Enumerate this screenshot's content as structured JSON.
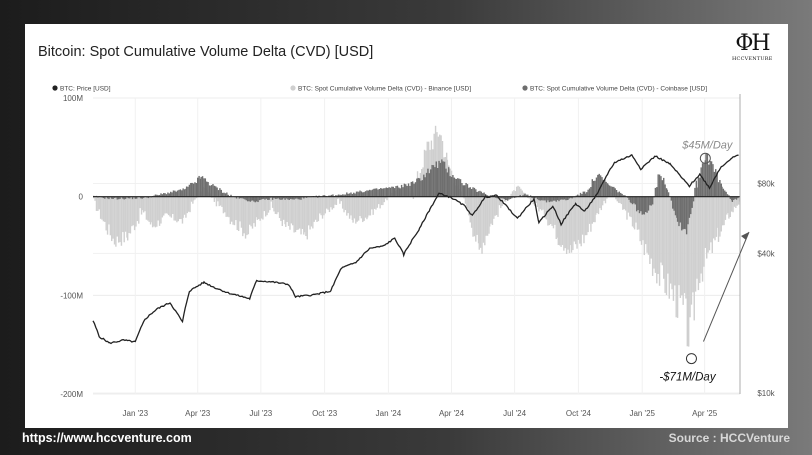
{
  "title": "Bitcoin: Spot Cumulative Volume Delta (CVD) [USD]",
  "logo": {
    "text": "HCCVENTURE"
  },
  "footer": {
    "url": "https://www.hccventure.com",
    "source": "Source : HCCVenture"
  },
  "colors": {
    "binance": "#cfcfcf",
    "coinbase": "#6e6e6e",
    "price": "#222222",
    "zero": "#222222"
  },
  "chart_data": {
    "type": "area",
    "title": "Bitcoin: Spot Cumulative Volume Delta (CVD) [USD]",
    "legend": [
      "BTC: Price [USD]",
      "BTC: Spot Cumulative Volume Delta (CVD) - Binance [USD]",
      "BTC: Spot Cumulative Volume Delta (CVD) - Coinbase [USD]"
    ],
    "legend_position": "top",
    "x_ticks": [
      "Jan '23",
      "Apr '23",
      "Jul '23",
      "Oct '23",
      "Jan '24",
      "Apr '24",
      "Jul '24",
      "Oct '24",
      "Jan '25",
      "Apr '25"
    ],
    "y_left": {
      "ticks": [
        "100M",
        "0",
        "-100M",
        "-200M"
      ],
      "tick_values": [
        100,
        0,
        -100,
        -200
      ],
      "ylim": [
        -200,
        100
      ],
      "unit": "USD (M)"
    },
    "y_right": {
      "ticks": [
        "$80k",
        "$40k",
        "$10k"
      ],
      "tick_values": [
        80000,
        40000,
        10000
      ],
      "scale": "log"
    },
    "x_range": [
      "2022-11",
      "2025-05"
    ],
    "grid": true,
    "series": [
      {
        "name": "BTC: Price [USD]",
        "axis": "right",
        "points": [
          [
            "2022-11-01",
            20500
          ],
          [
            "2022-11-10",
            17500
          ],
          [
            "2022-11-25",
            16400
          ],
          [
            "2022-12-15",
            16900
          ],
          [
            "2023-01-01",
            16600
          ],
          [
            "2023-01-15",
            20800
          ],
          [
            "2023-02-01",
            23000
          ],
          [
            "2023-02-20",
            24500
          ],
          [
            "2023-03-10",
            20200
          ],
          [
            "2023-03-20",
            27500
          ],
          [
            "2023-04-10",
            30000
          ],
          [
            "2023-04-25",
            28500
          ],
          [
            "2023-05-15",
            27000
          ],
          [
            "2023-06-15",
            25500
          ],
          [
            "2023-06-25",
            30500
          ],
          [
            "2023-07-15",
            30200
          ],
          [
            "2023-08-10",
            29400
          ],
          [
            "2023-08-20",
            26000
          ],
          [
            "2023-09-15",
            26500
          ],
          [
            "2023-10-10",
            27500
          ],
          [
            "2023-10-25",
            34500
          ],
          [
            "2023-11-15",
            36500
          ],
          [
            "2023-12-05",
            42000
          ],
          [
            "2023-12-25",
            43000
          ],
          [
            "2024-01-10",
            46500
          ],
          [
            "2024-01-23",
            39500
          ],
          [
            "2024-02-15",
            51000
          ],
          [
            "2024-03-01",
            62000
          ],
          [
            "2024-03-14",
            72500
          ],
          [
            "2024-04-01",
            69500
          ],
          [
            "2024-04-20",
            64000
          ],
          [
            "2024-05-01",
            58000
          ],
          [
            "2024-05-20",
            70000
          ],
          [
            "2024-06-05",
            71000
          ],
          [
            "2024-06-25",
            61000
          ],
          [
            "2024-07-05",
            56500
          ],
          [
            "2024-07-29",
            68500
          ],
          [
            "2024-08-05",
            54000
          ],
          [
            "2024-08-25",
            64000
          ],
          [
            "2024-09-06",
            53500
          ],
          [
            "2024-09-27",
            65500
          ],
          [
            "2024-10-10",
            60500
          ],
          [
            "2024-10-29",
            72500
          ],
          [
            "2024-11-12",
            88000
          ],
          [
            "2024-11-22",
            98500
          ],
          [
            "2024-12-17",
            106000
          ],
          [
            "2024-12-30",
            92500
          ],
          [
            "2025-01-20",
            105000
          ],
          [
            "2025-02-10",
            97000
          ],
          [
            "2025-02-28",
            84000
          ],
          [
            "2025-03-10",
            78000
          ],
          [
            "2025-03-25",
            87500
          ],
          [
            "2025-04-08",
            76500
          ],
          [
            "2025-04-25",
            94500
          ],
          [
            "2025-05-10",
            103000
          ],
          [
            "2025-05-20",
            106000
          ]
        ]
      },
      {
        "name": "BTC: Spot Cumulative Volume Delta (CVD) - Binance [USD]",
        "axis": "left",
        "unit": "M USD",
        "points": [
          [
            "2022-11-01",
            -5
          ],
          [
            "2022-11-15",
            -25
          ],
          [
            "2022-12-01",
            -45
          ],
          [
            "2022-12-20",
            -40
          ],
          [
            "2023-01-10",
            -15
          ],
          [
            "2023-01-25",
            -30
          ],
          [
            "2023-02-15",
            -20
          ],
          [
            "2023-03-10",
            -25
          ],
          [
            "2023-03-25",
            -5
          ],
          [
            "2023-04-10",
            10
          ],
          [
            "2023-04-25",
            -5
          ],
          [
            "2023-05-15",
            -20
          ],
          [
            "2023-06-10",
            -38
          ],
          [
            "2023-06-25",
            -25
          ],
          [
            "2023-07-15",
            -10
          ],
          [
            "2023-08-05",
            -30
          ],
          [
            "2023-09-01",
            -40
          ],
          [
            "2023-09-25",
            -20
          ],
          [
            "2023-10-20",
            -5
          ],
          [
            "2023-11-10",
            -25
          ],
          [
            "2023-12-01",
            -20
          ],
          [
            "2023-12-25",
            -5
          ],
          [
            "2024-01-15",
            10
          ],
          [
            "2024-02-05",
            5
          ],
          [
            "2024-02-25",
            50
          ],
          [
            "2024-03-14",
            68
          ],
          [
            "2024-03-25",
            35
          ],
          [
            "2024-04-10",
            10
          ],
          [
            "2024-04-25",
            -15
          ],
          [
            "2024-05-10",
            -55
          ],
          [
            "2024-05-25",
            -30
          ],
          [
            "2024-06-15",
            -5
          ],
          [
            "2024-07-05",
            10
          ],
          [
            "2024-07-25",
            -5
          ],
          [
            "2024-08-15",
            -20
          ],
          [
            "2024-09-01",
            -40
          ],
          [
            "2024-09-20",
            -55
          ],
          [
            "2024-10-10",
            -40
          ],
          [
            "2024-10-25",
            -20
          ],
          [
            "2024-11-15",
            5
          ],
          [
            "2024-12-01",
            -10
          ],
          [
            "2024-12-20",
            -30
          ],
          [
            "2025-01-05",
            -55
          ],
          [
            "2025-01-25",
            -80
          ],
          [
            "2025-02-10",
            -95
          ],
          [
            "2025-02-28",
            -115
          ],
          [
            "2025-03-10",
            -145
          ],
          [
            "2025-03-20",
            -85
          ],
          [
            "2025-04-05",
            -60
          ],
          [
            "2025-04-20",
            -40
          ],
          [
            "2025-05-05",
            -20
          ],
          [
            "2025-05-20",
            -5
          ]
        ]
      },
      {
        "name": "BTC: Spot Cumulative Volume Delta (CVD) - Coinbase [USD]",
        "axis": "left",
        "unit": "M USD",
        "points": [
          [
            "2022-11-01",
            0
          ],
          [
            "2022-12-01",
            -2
          ],
          [
            "2023-01-15",
            -1
          ],
          [
            "2023-03-15",
            8
          ],
          [
            "2023-04-05",
            20
          ],
          [
            "2023-04-20",
            12
          ],
          [
            "2023-05-20",
            0
          ],
          [
            "2023-06-20",
            -5
          ],
          [
            "2023-07-15",
            -2
          ],
          [
            "2023-08-15",
            -3
          ],
          [
            "2023-09-20",
            0
          ],
          [
            "2023-10-20",
            2
          ],
          [
            "2023-11-20",
            5
          ],
          [
            "2023-12-20",
            8
          ],
          [
            "2024-01-15",
            10
          ],
          [
            "2024-02-10",
            15
          ],
          [
            "2024-03-01",
            28
          ],
          [
            "2024-03-15",
            35
          ],
          [
            "2024-04-05",
            20
          ],
          [
            "2024-04-25",
            10
          ],
          [
            "2024-05-20",
            2
          ],
          [
            "2024-06-20",
            -3
          ],
          [
            "2024-07-15",
            2
          ],
          [
            "2024-08-15",
            -5
          ],
          [
            "2024-09-15",
            -3
          ],
          [
            "2024-10-10",
            5
          ],
          [
            "2024-10-28",
            22
          ],
          [
            "2024-11-12",
            12
          ],
          [
            "2024-11-28",
            5
          ],
          [
            "2024-12-15",
            -5
          ],
          [
            "2025-01-01",
            -20
          ],
          [
            "2025-01-15",
            -5
          ],
          [
            "2025-01-25",
            25
          ],
          [
            "2025-02-05",
            10
          ],
          [
            "2025-02-20",
            -25
          ],
          [
            "2025-03-05",
            -35
          ],
          [
            "2025-03-20",
            15
          ],
          [
            "2025-04-02",
            45
          ],
          [
            "2025-04-12",
            30
          ],
          [
            "2025-04-25",
            10
          ],
          [
            "2025-05-10",
            -5
          ],
          [
            "2025-05-20",
            0
          ]
        ]
      }
    ],
    "annotations": [
      {
        "text": "-$71M/Day",
        "x": "2025-03-13",
        "y": -155
      },
      {
        "text": "$45M/Day",
        "x": "2025-04-02",
        "y": 45
      }
    ]
  }
}
